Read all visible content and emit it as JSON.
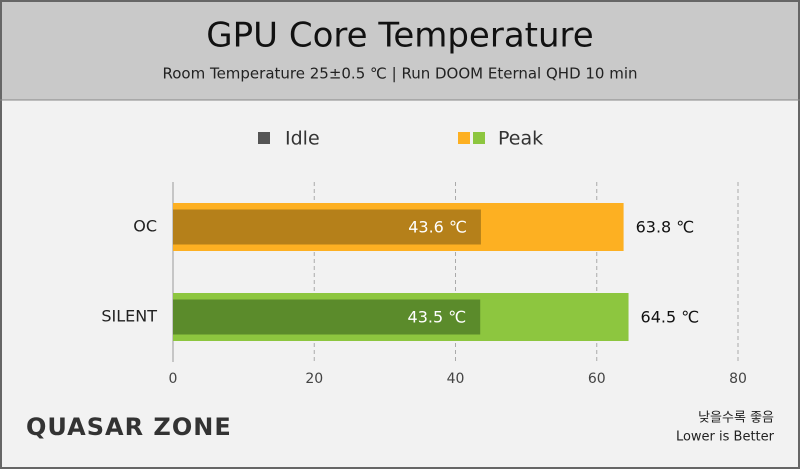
{
  "chart_data": {
    "type": "bar",
    "orientation": "horizontal",
    "overlap": true,
    "title": "GPU Core Temperature",
    "subtitle": "Room Temperature 25±0.5 ℃  |  Run DOOM Eternal QHD 10 min",
    "categories": [
      "OC",
      "SILENT"
    ],
    "series": [
      {
        "name": "Idle",
        "color": "#555555",
        "colors": [
          "#b5801a",
          "#5b8b2b"
        ],
        "values": [
          43.6,
          43.5
        ],
        "value_labels": [
          "43.6 ℃",
          "43.5 ℃"
        ]
      },
      {
        "name": "Peak",
        "color": "#fdb022",
        "colors": [
          "#fdb022",
          "#8dc63f"
        ],
        "values": [
          63.8,
          64.5
        ],
        "value_labels": [
          "63.8 ℃",
          "64.5 ℃"
        ]
      }
    ],
    "xlim": [
      0,
      80
    ],
    "xticks": [
      0,
      20,
      40,
      60,
      80
    ],
    "grid": true,
    "logo": "QUASAR ZONE",
    "note": [
      "낮을수록 좋음",
      "Lower is Better"
    ]
  }
}
